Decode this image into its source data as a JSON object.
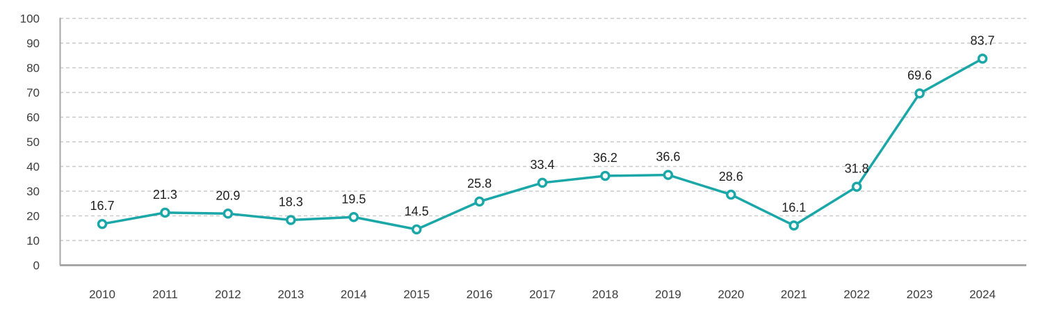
{
  "chart_data": {
    "type": "line",
    "title": "",
    "xlabel": "",
    "ylabel": "",
    "categories": [
      "2010",
      "2011",
      "2012",
      "2013",
      "2014",
      "2015",
      "2016",
      "2017",
      "2018",
      "2019",
      "2020",
      "2021",
      "2022",
      "2023",
      "2024"
    ],
    "series": [
      {
        "name": "value",
        "values": [
          16.7,
          21.3,
          20.9,
          18.3,
          19.5,
          14.5,
          25.8,
          33.4,
          36.2,
          36.6,
          28.6,
          16.1,
          31.8,
          69.6,
          83.7
        ]
      }
    ],
    "data_labels": [
      "16.7",
      "21.3",
      "20.9",
      "18.3",
      "19.5",
      "14.5",
      "25.8",
      "33.4",
      "36.2",
      "36.6",
      "28.6",
      "16.1",
      "31.8",
      "69.6",
      "83.7"
    ],
    "ylim": [
      0,
      100
    ],
    "ytick_step": 10,
    "ytick_labels": [
      "0",
      "10",
      "20",
      "30",
      "40",
      "50",
      "60",
      "70",
      "80",
      "90",
      "100"
    ],
    "grid": "horizontal-dashed",
    "legend_position": "none",
    "marker_style": "open-circle",
    "colors": {
      "line": "#1BA7A8",
      "marker_fill": "#ffffff",
      "grid": "#c9c9c9",
      "axis_bottom": "#a6a6a6",
      "axis_left": "#a6a6a6",
      "data_label_text": "#1e1e1e",
      "tick_text": "#3c3c3c",
      "background": "#ffffff"
    }
  }
}
